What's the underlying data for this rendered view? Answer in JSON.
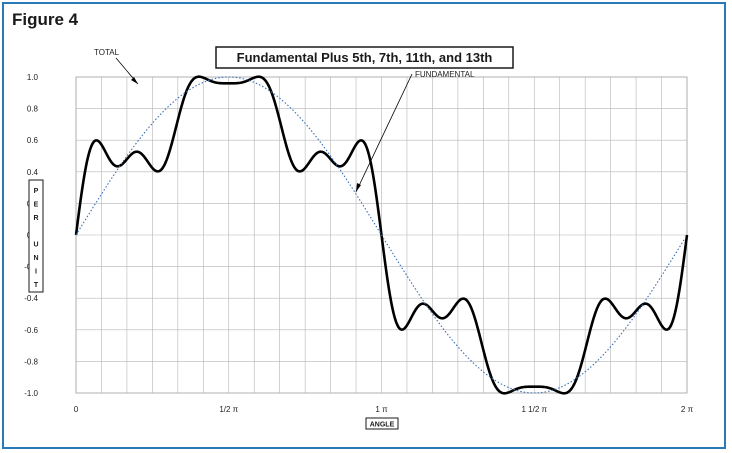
{
  "figure_label": "Figure 4",
  "chart_data": {
    "type": "line",
    "title": "Fundamental Plus 5th, 7th, 11th, and 13th",
    "xlabel": "ANGLE",
    "ylabel": "PER UNIT",
    "ylabel_letters": [
      "P",
      "E",
      "R",
      "",
      "U",
      "N",
      "I",
      "T"
    ],
    "xlim": [
      0,
      6.2832
    ],
    "ylim": [
      -1.0,
      1.0
    ],
    "yticks": [
      1.0,
      0.8,
      0.6,
      0.4,
      0.2,
      0.0,
      -0.2,
      -0.4,
      -0.6,
      -0.8,
      -1.0
    ],
    "ytick_labels": [
      "1.0",
      "0.8",
      "0.6",
      "0.4",
      "0.2",
      "0.0",
      "-0.2",
      "-0.4",
      "-0.6",
      "-0.8",
      "-1.0"
    ],
    "xticks": [
      {
        "value": 0,
        "label": "0"
      },
      {
        "value": 1.5708,
        "label": "1/2  π"
      },
      {
        "value": 3.1416,
        "label": "1    π"
      },
      {
        "value": 4.7124,
        "label": "1 1/2  π"
      },
      {
        "value": 6.2832,
        "label": "2     π"
      }
    ],
    "grid": true,
    "series": [
      {
        "name": "TOTAL",
        "style": "solid",
        "color": "#000000",
        "harmonics": [
          {
            "order": 1,
            "amplitude": 0.92
          },
          {
            "order": 5,
            "amplitude": 0.2
          },
          {
            "order": 7,
            "amplitude": 0.14
          },
          {
            "order": 11,
            "amplitude": 0.09
          },
          {
            "order": 13,
            "amplitude": 0.07
          }
        ]
      },
      {
        "name": "FUNDAMENTAL",
        "style": "dotted",
        "color": "#3b6fb6",
        "harmonics": [
          {
            "order": 1,
            "amplitude": 1.0
          }
        ]
      }
    ],
    "annotations": [
      {
        "text": "TOTAL",
        "series": "TOTAL"
      },
      {
        "text": "FUNDAMENTAL",
        "series": "FUNDAMENTAL"
      }
    ]
  }
}
